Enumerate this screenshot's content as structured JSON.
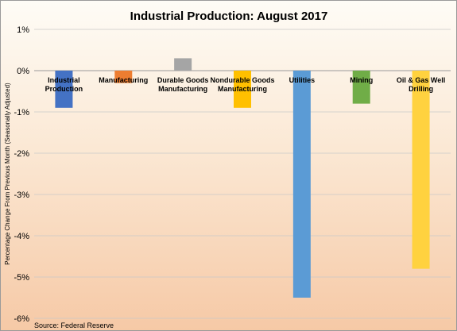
{
  "chart_data": {
    "type": "bar",
    "title": "Industrial Production:  August 2017",
    "ylabel": "Percentage Change From Previous Month (Seasonally Adjusted)",
    "source": "Source: Federal Reserve",
    "ylim": [
      -6,
      1
    ],
    "yticks": [
      1,
      0,
      -1,
      -2,
      -3,
      -4,
      -5,
      -6
    ],
    "ytick_labels": [
      "1%",
      "0%",
      "-1%",
      "-2%",
      "-3%",
      "-4%",
      "-5%",
      "-6%"
    ],
    "grid": true,
    "categories": [
      [
        "Industrial",
        "Production"
      ],
      [
        "Manufacturing"
      ],
      [
        "Durable Goods",
        "Manufacturing"
      ],
      [
        "Nondurable Goods",
        "Manufacturing"
      ],
      [
        "Utilities"
      ],
      [
        "Mining"
      ],
      [
        "Oil & Gas Well",
        "Drilling"
      ]
    ],
    "values": [
      -0.9,
      -0.3,
      0.3,
      -0.9,
      -5.5,
      -0.8,
      -4.8
    ],
    "colors": [
      "#4472c4",
      "#ed7d31",
      "#a5a5a5",
      "#ffc000",
      "#5b9bd5",
      "#70ad47",
      "#ffd23f"
    ]
  }
}
